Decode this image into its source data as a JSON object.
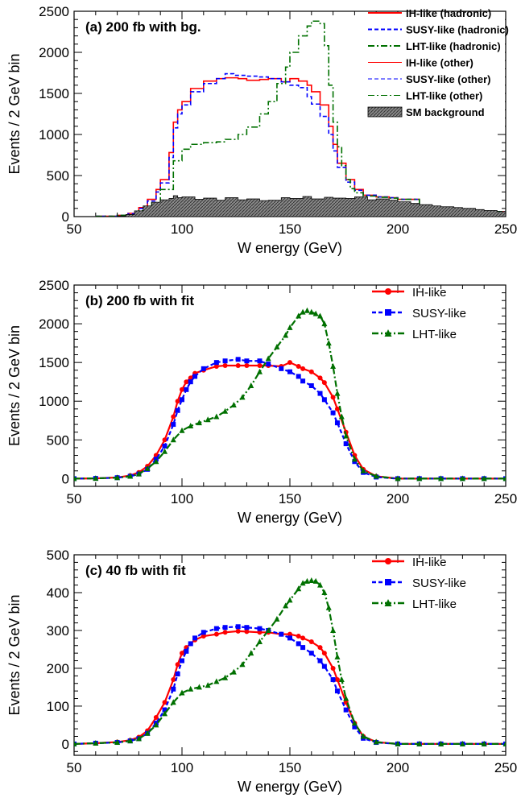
{
  "colors": {
    "ih": "#ff0000",
    "susy": "#0000ff",
    "lht": "#007000",
    "bg_fill": "#555555"
  },
  "chart_data": [
    {
      "type": "line",
      "title": "(a) 200 fb with bg.",
      "xlabel": "W energy (GeV)",
      "ylabel": "Events / 2 GeV bin",
      "xlim": [
        50,
        250
      ],
      "ylim": [
        0,
        2500
      ],
      "xticks": [
        "50",
        "100",
        "150",
        "200",
        "250"
      ],
      "yticks": [
        "0",
        "500",
        "1000",
        "1500",
        "2000",
        "2500"
      ],
      "legend": [
        {
          "label": "IH-like (hadronic)",
          "key": "ih",
          "style": "solid"
        },
        {
          "label": "SUSY-like (hadronic)",
          "key": "susy",
          "style": "dashed"
        },
        {
          "label": "LHT-like (hadronic)",
          "key": "lht",
          "style": "dashdot"
        },
        {
          "label": "IH-like (other)",
          "key": "ih",
          "style": "thin-solid"
        },
        {
          "label": "SUSY-like (other)",
          "key": "susy",
          "style": "thin-dashed"
        },
        {
          "label": "LHT-like (other)",
          "key": "lht",
          "style": "thin-dashdot"
        },
        {
          "label": "SM background",
          "key": "bg",
          "style": "fill"
        }
      ],
      "series": [
        {
          "name": "IH-like (hadronic)",
          "key": "ih",
          "x": [
            60,
            70,
            75,
            80,
            84,
            88,
            90,
            94,
            96,
            98,
            100,
            104,
            110,
            116,
            120,
            126,
            130,
            136,
            140,
            146,
            150,
            154,
            158,
            160,
            164,
            168,
            170,
            172,
            176,
            180,
            184,
            190,
            196,
            200,
            210,
            250
          ],
          "y": [
            5,
            15,
            40,
            110,
            210,
            330,
            450,
            780,
            1150,
            1300,
            1400,
            1560,
            1650,
            1680,
            1690,
            1680,
            1660,
            1670,
            1680,
            1640,
            1680,
            1650,
            1600,
            1520,
            1360,
            1100,
            880,
            650,
            450,
            330,
            260,
            240,
            230,
            210,
            60,
            0
          ]
        },
        {
          "name": "SUSY-like (hadronic)",
          "key": "susy",
          "x": [
            60,
            70,
            75,
            80,
            84,
            88,
            90,
            94,
            96,
            98,
            100,
            104,
            110,
            116,
            120,
            124,
            130,
            136,
            140,
            146,
            150,
            154,
            158,
            160,
            164,
            168,
            170,
            172,
            176,
            180,
            184,
            190,
            196,
            200,
            210,
            250
          ],
          "y": [
            5,
            15,
            35,
            100,
            190,
            300,
            410,
            720,
            1080,
            1250,
            1360,
            1520,
            1620,
            1680,
            1740,
            1720,
            1710,
            1700,
            1680,
            1640,
            1600,
            1570,
            1460,
            1370,
            1220,
            1000,
            800,
            600,
            420,
            320,
            260,
            240,
            230,
            210,
            60,
            0
          ]
        },
        {
          "name": "LHT-like (hadronic)",
          "key": "lht",
          "x": [
            60,
            70,
            80,
            86,
            90,
            96,
            100,
            104,
            110,
            116,
            120,
            126,
            130,
            136,
            140,
            144,
            148,
            150,
            154,
            158,
            160,
            164,
            166,
            168,
            170,
            172,
            174,
            176,
            178,
            180,
            184,
            190,
            196,
            200,
            210,
            250
          ],
          "y": [
            5,
            15,
            70,
            170,
            330,
            680,
            820,
            880,
            900,
            910,
            940,
            1000,
            1090,
            1250,
            1400,
            1620,
            1820,
            2000,
            2200,
            2320,
            2380,
            2350,
            2080,
            1600,
            1150,
            850,
            620,
            450,
            340,
            290,
            250,
            235,
            225,
            210,
            60,
            0
          ]
        },
        {
          "name": "SM background",
          "key": "bg",
          "kind": "bg-fill",
          "x": [
            60,
            70,
            74,
            78,
            82,
            86,
            90,
            94,
            96,
            98,
            100,
            106,
            110,
            116,
            120,
            126,
            130,
            136,
            140,
            146,
            150,
            156,
            160,
            166,
            170,
            176,
            180,
            186,
            190,
            196,
            200,
            206,
            210,
            216,
            220,
            226,
            230,
            236,
            240,
            246,
            250
          ],
          "y": [
            0,
            8,
            25,
            70,
            130,
            175,
            205,
            220,
            255,
            230,
            240,
            210,
            225,
            200,
            230,
            205,
            215,
            195,
            200,
            230,
            220,
            245,
            215,
            235,
            225,
            220,
            240,
            205,
            215,
            200,
            180,
            160,
            145,
            130,
            120,
            110,
            100,
            85,
            75,
            60,
            45
          ]
        }
      ]
    },
    {
      "type": "line",
      "title": "(b) 200 fb with fit",
      "xlabel": "W energy (GeV)",
      "ylabel": "Events / 2 GeV bin",
      "xlim": [
        50,
        250
      ],
      "ylim": [
        -100,
        2500
      ],
      "xticks": [
        "50",
        "100",
        "150",
        "200",
        "250"
      ],
      "yticks": [
        "0",
        "500",
        "1000",
        "1500",
        "2000",
        "2500"
      ],
      "legend": [
        {
          "label": "IH-like",
          "key": "ih",
          "marker": "circle",
          "style": "solid"
        },
        {
          "label": "SUSY-like",
          "key": "susy",
          "marker": "square",
          "style": "dashed"
        },
        {
          "label": "LHT-like",
          "key": "lht",
          "marker": "triangle",
          "style": "dashdot"
        }
      ],
      "series": [
        {
          "name": "IH-like",
          "key": "ih",
          "x": [
            50,
            60,
            70,
            76,
            80,
            84,
            88,
            92,
            96,
            98,
            100,
            102,
            104,
            106,
            110,
            116,
            120,
            126,
            130,
            136,
            140,
            146,
            150,
            154,
            156,
            160,
            164,
            166,
            170,
            172,
            176,
            180,
            184,
            190,
            200,
            210,
            220,
            230,
            240,
            250
          ],
          "y": [
            0,
            3,
            15,
            40,
            80,
            160,
            300,
            500,
            800,
            1000,
            1150,
            1250,
            1300,
            1360,
            1400,
            1450,
            1460,
            1460,
            1460,
            1460,
            1460,
            1450,
            1500,
            1450,
            1420,
            1380,
            1300,
            1240,
            1050,
            900,
            600,
            300,
            120,
            30,
            0,
            0,
            0,
            0,
            0,
            0
          ]
        },
        {
          "name": "SUSY-like",
          "key": "susy",
          "x": [
            50,
            60,
            70,
            76,
            80,
            84,
            88,
            92,
            96,
            98,
            100,
            102,
            104,
            106,
            110,
            116,
            120,
            126,
            130,
            136,
            140,
            146,
            150,
            154,
            156,
            160,
            164,
            166,
            170,
            172,
            176,
            180,
            184,
            190,
            200,
            210,
            220,
            230,
            240,
            250
          ],
          "y": [
            0,
            3,
            12,
            30,
            60,
            120,
            250,
            420,
            700,
            880,
            1020,
            1150,
            1250,
            1320,
            1420,
            1500,
            1520,
            1540,
            1520,
            1520,
            1480,
            1420,
            1380,
            1320,
            1260,
            1200,
            1100,
            1020,
            850,
            720,
            450,
            220,
            80,
            20,
            0,
            0,
            0,
            0,
            0,
            0
          ]
        },
        {
          "name": "LHT-like",
          "key": "lht",
          "x": [
            50,
            60,
            70,
            76,
            80,
            84,
            88,
            92,
            96,
            100,
            104,
            108,
            112,
            116,
            120,
            124,
            128,
            132,
            136,
            140,
            144,
            148,
            150,
            154,
            156,
            158,
            160,
            162,
            164,
            166,
            168,
            170,
            172,
            174,
            176,
            180,
            184,
            190,
            200,
            210,
            220,
            230,
            240,
            250
          ],
          "y": [
            0,
            3,
            12,
            30,
            60,
            130,
            220,
            350,
            500,
            620,
            680,
            720,
            760,
            800,
            870,
            950,
            1050,
            1200,
            1380,
            1550,
            1700,
            1850,
            1950,
            2100,
            2150,
            2170,
            2150,
            2130,
            2100,
            2000,
            1750,
            1450,
            1100,
            800,
            550,
            250,
            100,
            30,
            0,
            0,
            0,
            0,
            0,
            0
          ]
        }
      ]
    },
    {
      "type": "line",
      "title": "(c) 40 fb with fit",
      "xlabel": "W energy (GeV)",
      "ylabel": "Events / 2 GeV bin",
      "xlim": [
        50,
        250
      ],
      "ylim": [
        -30,
        500
      ],
      "xticks": [
        "50",
        "100",
        "150",
        "200",
        "250"
      ],
      "yticks": [
        "0",
        "100",
        "200",
        "300",
        "400",
        "500"
      ],
      "legend": [
        {
          "label": "IH-like",
          "key": "ih",
          "marker": "circle",
          "style": "solid"
        },
        {
          "label": "SUSY-like",
          "key": "susy",
          "marker": "square",
          "style": "dashed"
        },
        {
          "label": "LHT-like",
          "key": "lht",
          "marker": "triangle",
          "style": "dashdot"
        }
      ],
      "series": [
        {
          "name": "IH-like",
          "key": "ih",
          "x": [
            50,
            60,
            70,
            76,
            80,
            84,
            88,
            92,
            96,
            98,
            100,
            102,
            104,
            106,
            110,
            116,
            120,
            126,
            130,
            136,
            140,
            146,
            150,
            154,
            156,
            160,
            164,
            166,
            170,
            172,
            176,
            180,
            184,
            190,
            200,
            210,
            220,
            230,
            240,
            250
          ],
          "y": [
            0,
            2,
            5,
            10,
            18,
            35,
            70,
            110,
            170,
            210,
            240,
            255,
            265,
            275,
            285,
            290,
            295,
            298,
            297,
            295,
            295,
            290,
            290,
            285,
            280,
            270,
            255,
            240,
            200,
            170,
            110,
            55,
            20,
            5,
            0,
            0,
            0,
            0,
            0,
            0
          ]
        },
        {
          "name": "SUSY-like",
          "key": "susy",
          "x": [
            50,
            60,
            70,
            76,
            80,
            84,
            88,
            92,
            96,
            98,
            100,
            102,
            104,
            106,
            110,
            116,
            120,
            126,
            130,
            136,
            140,
            146,
            150,
            154,
            156,
            160,
            164,
            166,
            170,
            172,
            176,
            180,
            184,
            190,
            200,
            210,
            220,
            230,
            240,
            250
          ],
          "y": [
            0,
            2,
            4,
            8,
            14,
            28,
            55,
            90,
            145,
            185,
            220,
            245,
            265,
            280,
            295,
            305,
            308,
            310,
            308,
            305,
            300,
            290,
            280,
            265,
            255,
            240,
            220,
            205,
            170,
            140,
            90,
            45,
            15,
            4,
            0,
            0,
            0,
            0,
            0,
            0
          ]
        },
        {
          "name": "LHT-like",
          "key": "lht",
          "x": [
            50,
            60,
            70,
            76,
            80,
            84,
            88,
            92,
            96,
            100,
            104,
            108,
            112,
            116,
            120,
            124,
            128,
            132,
            136,
            140,
            144,
            148,
            150,
            154,
            156,
            158,
            160,
            162,
            164,
            166,
            168,
            170,
            172,
            174,
            176,
            180,
            184,
            190,
            200,
            210,
            220,
            230,
            240,
            250
          ],
          "y": [
            0,
            2,
            4,
            8,
            14,
            28,
            50,
            80,
            110,
            135,
            145,
            150,
            155,
            165,
            175,
            190,
            210,
            240,
            270,
            300,
            330,
            365,
            380,
            410,
            425,
            430,
            432,
            430,
            420,
            400,
            360,
            300,
            230,
            170,
            120,
            55,
            20,
            5,
            0,
            0,
            0,
            0,
            0,
            0
          ]
        }
      ]
    }
  ]
}
